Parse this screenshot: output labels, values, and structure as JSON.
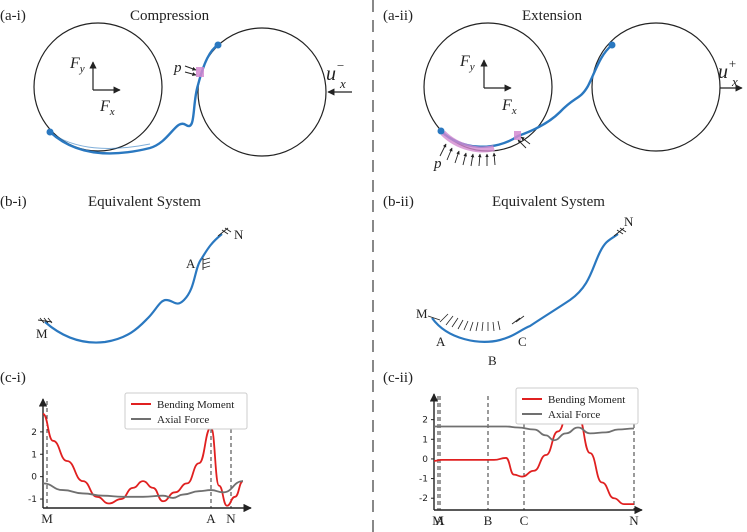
{
  "colors": {
    "rod": "#2a78c0",
    "contact": "#d38ad0",
    "bending": "#e02020",
    "axial": "#707070",
    "ink": "#222222",
    "divider": "#888888"
  },
  "panels": {
    "a_i": {
      "label": "(a-i)",
      "title": "Compression",
      "force_label": "p",
      "load_label": "u",
      "load_sup": "−",
      "load_sub": "x"
    },
    "a_ii": {
      "label": "(a-ii)",
      "title": "Extension",
      "force_label": "p",
      "load_label": "u",
      "load_sup": "+",
      "load_sub": "x"
    },
    "b_i": {
      "label": "(b-i)",
      "title": "Equivalent System",
      "points": [
        "M",
        "A",
        "N"
      ]
    },
    "b_ii": {
      "label": "(b-ii)",
      "title": "Equivalent System",
      "points": [
        "M",
        "A",
        "B",
        "C",
        "N"
      ]
    },
    "c_i": {
      "label": "(c-i)"
    },
    "c_ii": {
      "label": "(c-ii)"
    }
  },
  "frame": {
    "fy": "F",
    "fy_sub": "y",
    "fx": "F",
    "fx_sub": "x"
  },
  "chart_data": [
    {
      "type": "line",
      "panel": "(c-i)",
      "series": [
        {
          "name": "Bending Moment",
          "x": [
            0,
            0.05,
            0.12,
            0.2,
            0.27,
            0.33,
            0.39,
            0.45,
            0.5,
            0.55,
            0.6,
            0.66,
            0.72,
            0.78,
            0.84,
            0.88,
            0.92,
            0.96,
            1.0
          ],
          "values": [
            2.8,
            1.6,
            0.7,
            -0.2,
            -0.9,
            -1.2,
            -1.0,
            -0.5,
            -0.2,
            -0.5,
            -1.1,
            -0.7,
            -0.3,
            0.6,
            2.2,
            -0.4,
            -1.3,
            -0.9,
            -0.2
          ]
        },
        {
          "name": "Axial Force",
          "x": [
            0,
            0.1,
            0.2,
            0.3,
            0.4,
            0.5,
            0.6,
            0.65,
            0.7,
            0.78,
            0.84,
            0.9,
            1.0
          ],
          "values": [
            -0.3,
            -0.6,
            -0.75,
            -0.85,
            -0.9,
            -0.9,
            -0.85,
            -0.95,
            -0.8,
            -0.65,
            -0.6,
            -0.7,
            -0.2
          ]
        }
      ],
      "x_ticks": [
        "M",
        "A",
        "N"
      ],
      "x_tick_pos": [
        0,
        0.84,
        0.94
      ],
      "yticks": [
        "2",
        "1",
        "0",
        "-1"
      ],
      "ylim": [
        -1.4,
        3.2
      ],
      "legend": "top-right"
    },
    {
      "type": "line",
      "panel": "(c-ii)",
      "series": [
        {
          "name": "Bending Moment",
          "x": [
            0,
            0.04,
            0.1,
            0.2,
            0.3,
            0.36,
            0.4,
            0.44,
            0.5,
            0.56,
            0.62,
            0.68,
            0.72,
            0.78,
            0.84,
            0.9,
            0.95,
            1.0
          ],
          "values": [
            -0.1,
            -0.05,
            -0.05,
            -0.05,
            -0.05,
            0.05,
            -0.8,
            -0.9,
            -0.6,
            0.2,
            1.4,
            2.7,
            2.2,
            0.3,
            -1.2,
            -2.0,
            -2.3,
            -2.3
          ]
        },
        {
          "name": "Axial Force",
          "x": [
            0,
            0.1,
            0.2,
            0.3,
            0.36,
            0.42,
            0.5,
            0.56,
            0.6,
            0.66,
            0.72,
            0.78,
            0.86,
            0.92,
            1.0
          ],
          "values": [
            1.65,
            1.65,
            1.65,
            1.65,
            1.65,
            1.6,
            1.5,
            1.2,
            0.95,
            1.3,
            1.6,
            1.3,
            1.35,
            1.5,
            1.55
          ]
        }
      ],
      "x_ticks": [
        "M",
        "A",
        "B",
        "C",
        "N"
      ],
      "x_tick_pos": [
        0,
        0.03,
        0.27,
        0.45,
        1.0
      ],
      "yticks": [
        "2",
        "1",
        "0",
        "-1",
        "-2"
      ],
      "ylim": [
        -2.6,
        3.0
      ],
      "legend": "top-right"
    }
  ]
}
